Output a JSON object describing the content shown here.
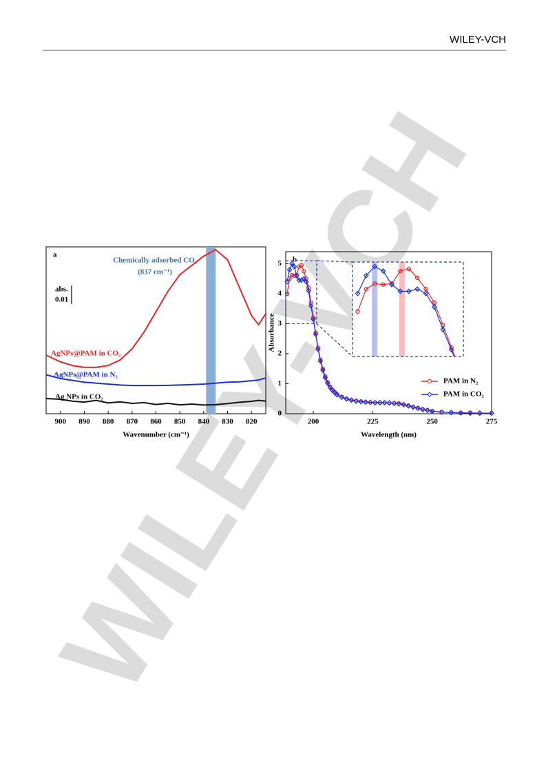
{
  "header": {
    "logo": "WILEY-VCH"
  },
  "watermark": "WILEY-VCH",
  "chart_data": [
    {
      "type": "line",
      "panel": "a",
      "annotation": [
        "Chemically adsorbed CO₂",
        "(837 cm⁻¹)"
      ],
      "xlabel": "Wavenumber (cm⁻¹)",
      "xlim": [
        906,
        814
      ],
      "ylim": [
        0,
        0.09
      ],
      "xticks": [
        900,
        890,
        880,
        870,
        860,
        850,
        840,
        830,
        820
      ],
      "scale_bar": {
        "label": "abs.",
        "value": 0.01
      },
      "band": {
        "from": 839,
        "to": 835,
        "color": "#8aaed4"
      },
      "x": [
        906,
        900,
        895,
        890,
        885,
        880,
        875,
        870,
        865,
        860,
        855,
        850,
        845,
        840,
        835,
        830,
        825,
        820,
        817,
        814
      ],
      "series": [
        {
          "name": "AgNPs@PAM in CO₂",
          "color": "#ee2222",
          "values": [
            0.0316,
            0.028,
            0.026,
            0.025,
            0.025,
            0.026,
            0.029,
            0.035,
            0.044,
            0.055,
            0.066,
            0.075,
            0.08,
            0.085,
            0.0885,
            0.083,
            0.068,
            0.053,
            0.048,
            0.054
          ]
        },
        {
          "name": "AgNPs@PAM in N₂",
          "color": "#1a2ee0",
          "values": [
            0.021,
            0.019,
            0.018,
            0.017,
            0.0165,
            0.016,
            0.0155,
            0.0152,
            0.0152,
            0.0152,
            0.0153,
            0.0155,
            0.0157,
            0.016,
            0.0165,
            0.017,
            0.0172,
            0.0178,
            0.0182,
            0.0193
          ]
        },
        {
          "name": "Ag NPs in CO₂",
          "color": "#111111",
          "values": [
            0.0082,
            0.0078,
            0.0068,
            0.0063,
            0.0072,
            0.0058,
            0.0064,
            0.0056,
            0.006,
            0.005,
            0.0056,
            0.0048,
            0.0052,
            0.0047,
            0.0049,
            0.0055,
            0.0062,
            0.0067,
            0.0072,
            0.0068
          ]
        }
      ]
    },
    {
      "type": "line",
      "panel": "b",
      "xlabel": "Wavelength (nm)",
      "ylabel": "Absorbance",
      "xlim": [
        188.4,
        275
      ],
      "ylim": [
        0,
        5.4
      ],
      "xticks": [
        200,
        225,
        250,
        275
      ],
      "yticks": [
        0,
        1,
        2,
        3,
        4,
        5
      ],
      "legend": "right",
      "inset": {
        "xlim": [
          188.4,
          201.4
        ],
        "ylim": [
          3,
          5.1
        ],
        "bands": [
          {
            "x": 191,
            "color": "#9aa4f0"
          },
          {
            "x": 194.2,
            "color": "#f4a0a0"
          }
        ]
      },
      "x": [
        189,
        190,
        191,
        192,
        193,
        194,
        195,
        196,
        197,
        198,
        199,
        200,
        201,
        202,
        203,
        204,
        205,
        206,
        207,
        208,
        209,
        210,
        212,
        214,
        216,
        218,
        220,
        222,
        224,
        226,
        228,
        230,
        232,
        234,
        236,
        238,
        240,
        242,
        244,
        246,
        248,
        250,
        254,
        258,
        262,
        266,
        270,
        275
      ],
      "series": [
        {
          "name": "PAM in N₂",
          "color": "#ee2222",
          "marker": "circle",
          "values": [
            4.0,
            4.5,
            4.62,
            4.6,
            4.62,
            4.9,
            4.95,
            4.75,
            4.5,
            4.2,
            3.7,
            3.2,
            2.7,
            2.2,
            1.8,
            1.5,
            1.25,
            1.05,
            0.9,
            0.8,
            0.72,
            0.65,
            0.56,
            0.5,
            0.46,
            0.43,
            0.41,
            0.39,
            0.38,
            0.37,
            0.37,
            0.37,
            0.36,
            0.35,
            0.34,
            0.31,
            0.27,
            0.23,
            0.19,
            0.15,
            0.12,
            0.09,
            0.06,
            0.04,
            0.03,
            0.03,
            0.02,
            0.02
          ]
        },
        {
          "name": "PAM in CO₂",
          "color": "#1a2ee0",
          "marker": "diamond",
          "values": [
            4.4,
            4.8,
            5.0,
            4.9,
            4.6,
            4.45,
            4.45,
            4.5,
            4.4,
            4.1,
            3.6,
            3.15,
            2.65,
            2.15,
            1.75,
            1.45,
            1.2,
            1.02,
            0.88,
            0.78,
            0.7,
            0.63,
            0.55,
            0.49,
            0.45,
            0.42,
            0.4,
            0.39,
            0.38,
            0.37,
            0.37,
            0.37,
            0.36,
            0.35,
            0.33,
            0.3,
            0.26,
            0.22,
            0.18,
            0.14,
            0.11,
            0.08,
            0.05,
            0.04,
            0.03,
            0.02,
            0.02,
            0.02
          ]
        }
      ]
    }
  ]
}
